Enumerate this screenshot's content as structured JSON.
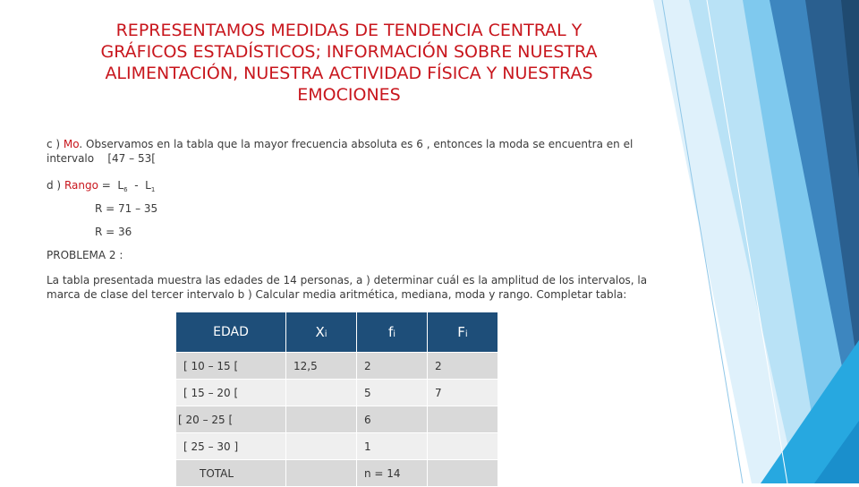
{
  "title": "REPRESENTAMOS MEDIDAS DE TENDENCIA CENTRAL Y GRÁFICOS ESTADÍSTICOS; INFORMACIÓN SOBRE NUESTRA ALIMENTACIÓN, NUESTRA ACTIVIDAD FÍSICA Y NUESTRAS EMOCIONES",
  "item_c": {
    "prefix": "c ) ",
    "keyword": "Mo",
    "text": ". Observamos en la tabla que la mayor frecuencia absoluta es 6 , entonces la moda se encuentra en el intervalo",
    "interval": "[47 – 53["
  },
  "item_d": {
    "prefix": "d ) ",
    "keyword": "Rango",
    "formula_eq": " =  L",
    "sub1": "6",
    "formula_minus": "  -  L",
    "sub2": "1",
    "line2": "R  =  71 – 35",
    "line3": "R  =  36"
  },
  "problem_title": "PROBLEMA 2  :",
  "problem_text": "La tabla presentada muestra las edades de 14 personas, a ) determinar cuál es la amplitud de los intervalos, la marca de clase del tercer intervalo  b ) Calcular media aritmética, mediana, moda y rango. Completar tabla:",
  "table": {
    "headers": {
      "col1": "EDAD",
      "col2_main": "X",
      "col2_sub": "i",
      "col3_main": "f",
      "col3_sub": "i",
      "col4_main": "F",
      "col4_sub": "i"
    },
    "rows": [
      {
        "edad": "[ 10 – 15 [",
        "xi": "12,5",
        "fi": "2",
        "Fi": "2"
      },
      {
        "edad": "[ 15 – 20 [",
        "xi": "",
        "fi": "5",
        "Fi": "7"
      },
      {
        "edad": "[ 20 – 25 [",
        "xi": "",
        "fi": "6",
        "Fi": ""
      },
      {
        "edad": "[ 25 – 30 ]",
        "xi": "",
        "fi": "1",
        "Fi": ""
      }
    ],
    "total_label": "TOTAL",
    "total_fi": "n = 14"
  },
  "colors": {
    "title": "#c8161d",
    "header_bg": "#1e4e79",
    "deco_dark": "#2b6a9c",
    "deco_light": "#b3dff5"
  }
}
